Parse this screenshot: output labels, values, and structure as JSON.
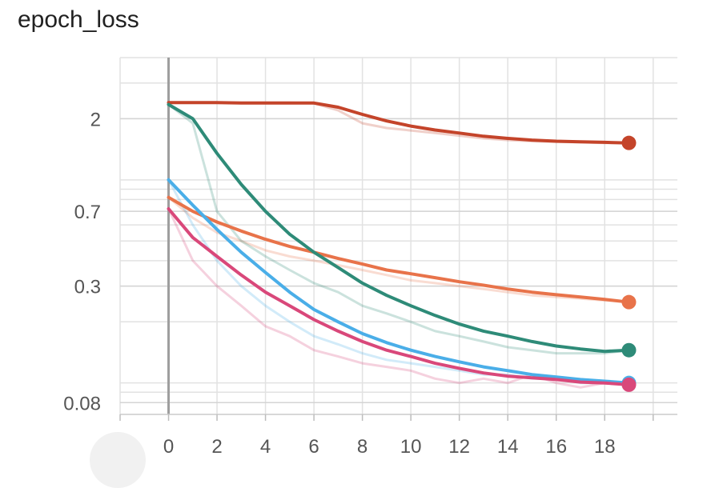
{
  "chart_data": {
    "type": "line",
    "title": "epoch_loss",
    "xlabel": "",
    "ylabel": "",
    "y_scale": "log",
    "xlim": [
      -2,
      21
    ],
    "ylim": [
      0.07,
      4
    ],
    "x_ticks": [
      0,
      2,
      4,
      6,
      8,
      10,
      12,
      14,
      16,
      18
    ],
    "y_ticks": [
      0.08,
      0.3,
      0.7,
      2
    ],
    "y_tick_labels": [
      "0.08",
      "0.3",
      "0.7",
      "2"
    ],
    "grid": true,
    "legend": "none",
    "x": [
      0,
      1,
      2,
      3,
      4,
      5,
      6,
      7,
      8,
      9,
      10,
      11,
      12,
      13,
      14,
      15,
      16,
      17,
      18,
      19
    ],
    "series": [
      {
        "color": "#c4442a",
        "raw": [
          2.4,
          2.4,
          2.4,
          2.4,
          2.4,
          2.4,
          2.38,
          2.2,
          1.9,
          1.8,
          1.75,
          1.7,
          1.65,
          1.6,
          1.57,
          1.55,
          1.54,
          1.53,
          1.52,
          1.52
        ],
        "smoothed": [
          2.4,
          2.4,
          2.4,
          2.39,
          2.39,
          2.39,
          2.39,
          2.28,
          2.1,
          1.95,
          1.84,
          1.76,
          1.7,
          1.64,
          1.6,
          1.57,
          1.55,
          1.54,
          1.53,
          1.52
        ]
      },
      {
        "color": "#e8734a",
        "raw": [
          0.82,
          0.65,
          0.55,
          0.5,
          0.45,
          0.42,
          0.4,
          0.38,
          0.36,
          0.34,
          0.32,
          0.31,
          0.3,
          0.29,
          0.28,
          0.27,
          0.265,
          0.26,
          0.255,
          0.25
        ],
        "smoothed": [
          0.82,
          0.7,
          0.62,
          0.56,
          0.51,
          0.47,
          0.44,
          0.41,
          0.385,
          0.36,
          0.345,
          0.33,
          0.315,
          0.303,
          0.29,
          0.28,
          0.272,
          0.265,
          0.258,
          0.25
        ]
      },
      {
        "color": "#2e8b78",
        "raw": [
          2.35,
          1.9,
          0.7,
          0.5,
          0.42,
          0.36,
          0.31,
          0.28,
          0.24,
          0.22,
          0.2,
          0.18,
          0.17,
          0.16,
          0.15,
          0.145,
          0.14,
          0.14,
          0.14,
          0.145
        ],
        "smoothed": [
          2.35,
          2.0,
          1.35,
          0.95,
          0.7,
          0.54,
          0.44,
          0.37,
          0.31,
          0.27,
          0.24,
          0.215,
          0.195,
          0.18,
          0.17,
          0.16,
          0.152,
          0.147,
          0.143,
          0.145
        ]
      },
      {
        "color": "#4aaee8",
        "raw": [
          1.0,
          0.6,
          0.4,
          0.3,
          0.24,
          0.2,
          0.17,
          0.155,
          0.14,
          0.13,
          0.125,
          0.12,
          0.115,
          0.11,
          0.11,
          0.105,
          0.105,
          0.1,
          0.1,
          0.1
        ],
        "smoothed": [
          1.0,
          0.75,
          0.57,
          0.44,
          0.35,
          0.28,
          0.23,
          0.2,
          0.175,
          0.158,
          0.145,
          0.135,
          0.127,
          0.12,
          0.115,
          0.11,
          0.107,
          0.104,
          0.102,
          0.1
        ]
      },
      {
        "color": "#d9487a",
        "raw": [
          0.72,
          0.4,
          0.3,
          0.24,
          0.19,
          0.17,
          0.145,
          0.135,
          0.125,
          0.12,
          0.115,
          0.105,
          0.1,
          0.105,
          0.1,
          0.11,
          0.1,
          0.095,
          0.1,
          0.098
        ],
        "smoothed": [
          0.72,
          0.52,
          0.42,
          0.34,
          0.28,
          0.24,
          0.205,
          0.18,
          0.16,
          0.145,
          0.135,
          0.125,
          0.118,
          0.112,
          0.108,
          0.106,
          0.104,
          0.101,
          0.1,
          0.098
        ]
      }
    ]
  }
}
